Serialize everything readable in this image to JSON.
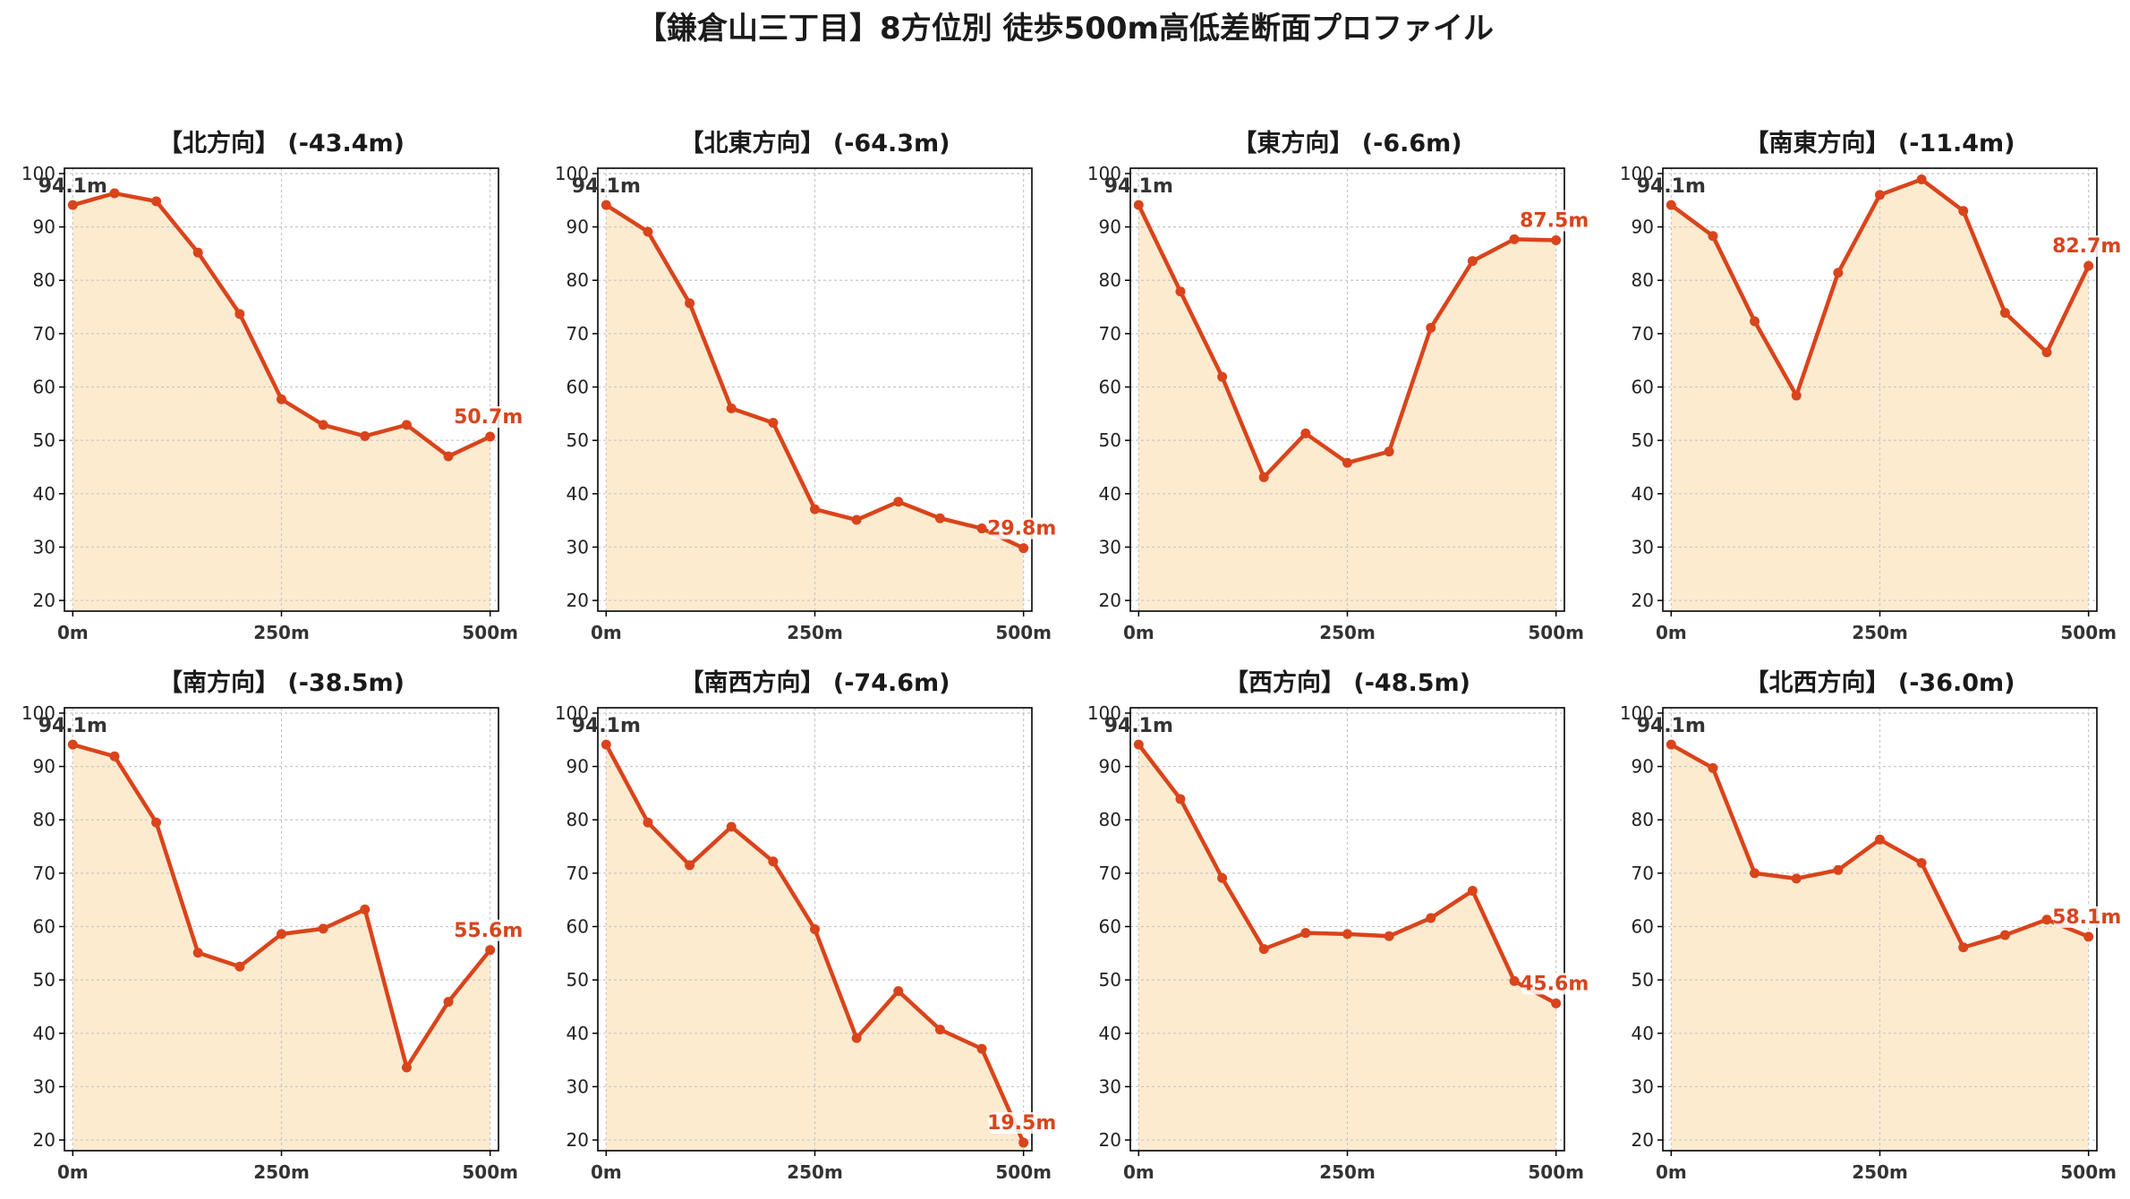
{
  "title": "【鎌倉山三丁目】8方位別 徒歩500m高低差断面プロファイル",
  "colors": {
    "line": "#d9441c",
    "fill": "#fdebd0",
    "grid": "#c8c8c8",
    "axis": "#000000",
    "start_label": "#333333",
    "end_label": "#d9441c"
  },
  "chart_data": [
    {
      "type": "area",
      "title": "【北方向】 (-43.4m)",
      "x": [
        0,
        50,
        100,
        150,
        200,
        250,
        300,
        350,
        400,
        450,
        500
      ],
      "values": [
        94.1,
        96.3,
        94.8,
        85.2,
        73.7,
        57.7,
        52.9,
        50.8,
        52.9,
        47.0,
        50.7
      ],
      "start_label": "94.1m",
      "end_label": "50.7m",
      "xticks": [
        "0m",
        "250m",
        "500m"
      ],
      "yticks": [
        20,
        30,
        40,
        50,
        60,
        70,
        80,
        90,
        100
      ],
      "ylim": [
        18,
        101
      ],
      "xlim": [
        -10,
        510
      ],
      "grid": true
    },
    {
      "type": "area",
      "title": "【北東方向】 (-64.3m)",
      "x": [
        0,
        50,
        100,
        150,
        200,
        250,
        300,
        350,
        400,
        450,
        500
      ],
      "values": [
        94.1,
        89.1,
        75.7,
        56.0,
        53.3,
        37.1,
        35.1,
        38.5,
        35.4,
        33.5,
        29.8
      ],
      "start_label": "94.1m",
      "end_label": "29.8m",
      "xticks": [
        "0m",
        "250m",
        "500m"
      ],
      "yticks": [
        20,
        30,
        40,
        50,
        60,
        70,
        80,
        90,
        100
      ],
      "ylim": [
        18,
        101
      ],
      "xlim": [
        -10,
        510
      ],
      "grid": true
    },
    {
      "type": "area",
      "title": "【東方向】 (-6.6m)",
      "x": [
        0,
        50,
        100,
        150,
        200,
        250,
        300,
        350,
        400,
        450,
        500
      ],
      "values": [
        94.1,
        77.9,
        61.9,
        43.1,
        51.3,
        45.8,
        47.9,
        71.1,
        83.6,
        87.7,
        87.5
      ],
      "start_label": "94.1m",
      "end_label": "87.5m",
      "xticks": [
        "0m",
        "250m",
        "500m"
      ],
      "yticks": [
        20,
        30,
        40,
        50,
        60,
        70,
        80,
        90,
        100
      ],
      "ylim": [
        18,
        101
      ],
      "xlim": [
        -10,
        510
      ],
      "grid": true
    },
    {
      "type": "area",
      "title": "【南東方向】 (-11.4m)",
      "x": [
        0,
        50,
        100,
        150,
        200,
        250,
        300,
        350,
        400,
        450,
        500
      ],
      "values": [
        94.1,
        88.3,
        72.3,
        58.4,
        81.4,
        96.0,
        98.9,
        93.0,
        73.9,
        66.5,
        82.7
      ],
      "start_label": "94.1m",
      "end_label": "82.7m",
      "xticks": [
        "0m",
        "250m",
        "500m"
      ],
      "yticks": [
        20,
        30,
        40,
        50,
        60,
        70,
        80,
        90,
        100
      ],
      "ylim": [
        18,
        101
      ],
      "xlim": [
        -10,
        510
      ],
      "grid": true
    },
    {
      "type": "area",
      "title": "【南方向】 (-38.5m)",
      "x": [
        0,
        50,
        100,
        150,
        200,
        250,
        300,
        350,
        400,
        450,
        500
      ],
      "values": [
        94.1,
        91.9,
        79.5,
        55.1,
        52.5,
        58.6,
        59.6,
        63.2,
        33.6,
        45.9,
        55.6
      ],
      "start_label": "94.1m",
      "end_label": "55.6m",
      "xticks": [
        "0m",
        "250m",
        "500m"
      ],
      "yticks": [
        20,
        30,
        40,
        50,
        60,
        70,
        80,
        90,
        100
      ],
      "ylim": [
        18,
        101
      ],
      "xlim": [
        -10,
        510
      ],
      "grid": true
    },
    {
      "type": "area",
      "title": "【南西方向】 (-74.6m)",
      "x": [
        0,
        50,
        100,
        150,
        200,
        250,
        300,
        350,
        400,
        450,
        500
      ],
      "values": [
        94.1,
        79.5,
        71.5,
        78.7,
        72.2,
        59.5,
        39.1,
        47.9,
        40.7,
        37.1,
        19.5
      ],
      "start_label": "94.1m",
      "end_label": "19.5m",
      "xticks": [
        "0m",
        "250m",
        "500m"
      ],
      "yticks": [
        20,
        30,
        40,
        50,
        60,
        70,
        80,
        90,
        100
      ],
      "ylim": [
        18,
        101
      ],
      "xlim": [
        -10,
        510
      ],
      "grid": true
    },
    {
      "type": "area",
      "title": "【西方向】 (-48.5m)",
      "x": [
        0,
        50,
        100,
        150,
        200,
        250,
        300,
        350,
        400,
        450,
        500
      ],
      "values": [
        94.1,
        83.9,
        69.1,
        55.8,
        58.8,
        58.6,
        58.2,
        61.6,
        66.7,
        49.8,
        45.6
      ],
      "start_label": "94.1m",
      "end_label": "45.6m",
      "xticks": [
        "0m",
        "250m",
        "500m"
      ],
      "yticks": [
        20,
        30,
        40,
        50,
        60,
        70,
        80,
        90,
        100
      ],
      "ylim": [
        18,
        101
      ],
      "xlim": [
        -10,
        510
      ],
      "grid": true
    },
    {
      "type": "area",
      "title": "【北西方向】 (-36.0m)",
      "x": [
        0,
        50,
        100,
        150,
        200,
        250,
        300,
        350,
        400,
        450,
        500
      ],
      "values": [
        94.1,
        89.7,
        70.0,
        69.0,
        70.6,
        76.3,
        71.9,
        56.1,
        58.4,
        61.3,
        58.1
      ],
      "start_label": "94.1m",
      "end_label": "58.1m",
      "xticks": [
        "0m",
        "250m",
        "500m"
      ],
      "yticks": [
        20,
        30,
        40,
        50,
        60,
        70,
        80,
        90,
        100
      ],
      "ylim": [
        18,
        101
      ],
      "xlim": [
        -10,
        510
      ],
      "grid": true
    }
  ]
}
